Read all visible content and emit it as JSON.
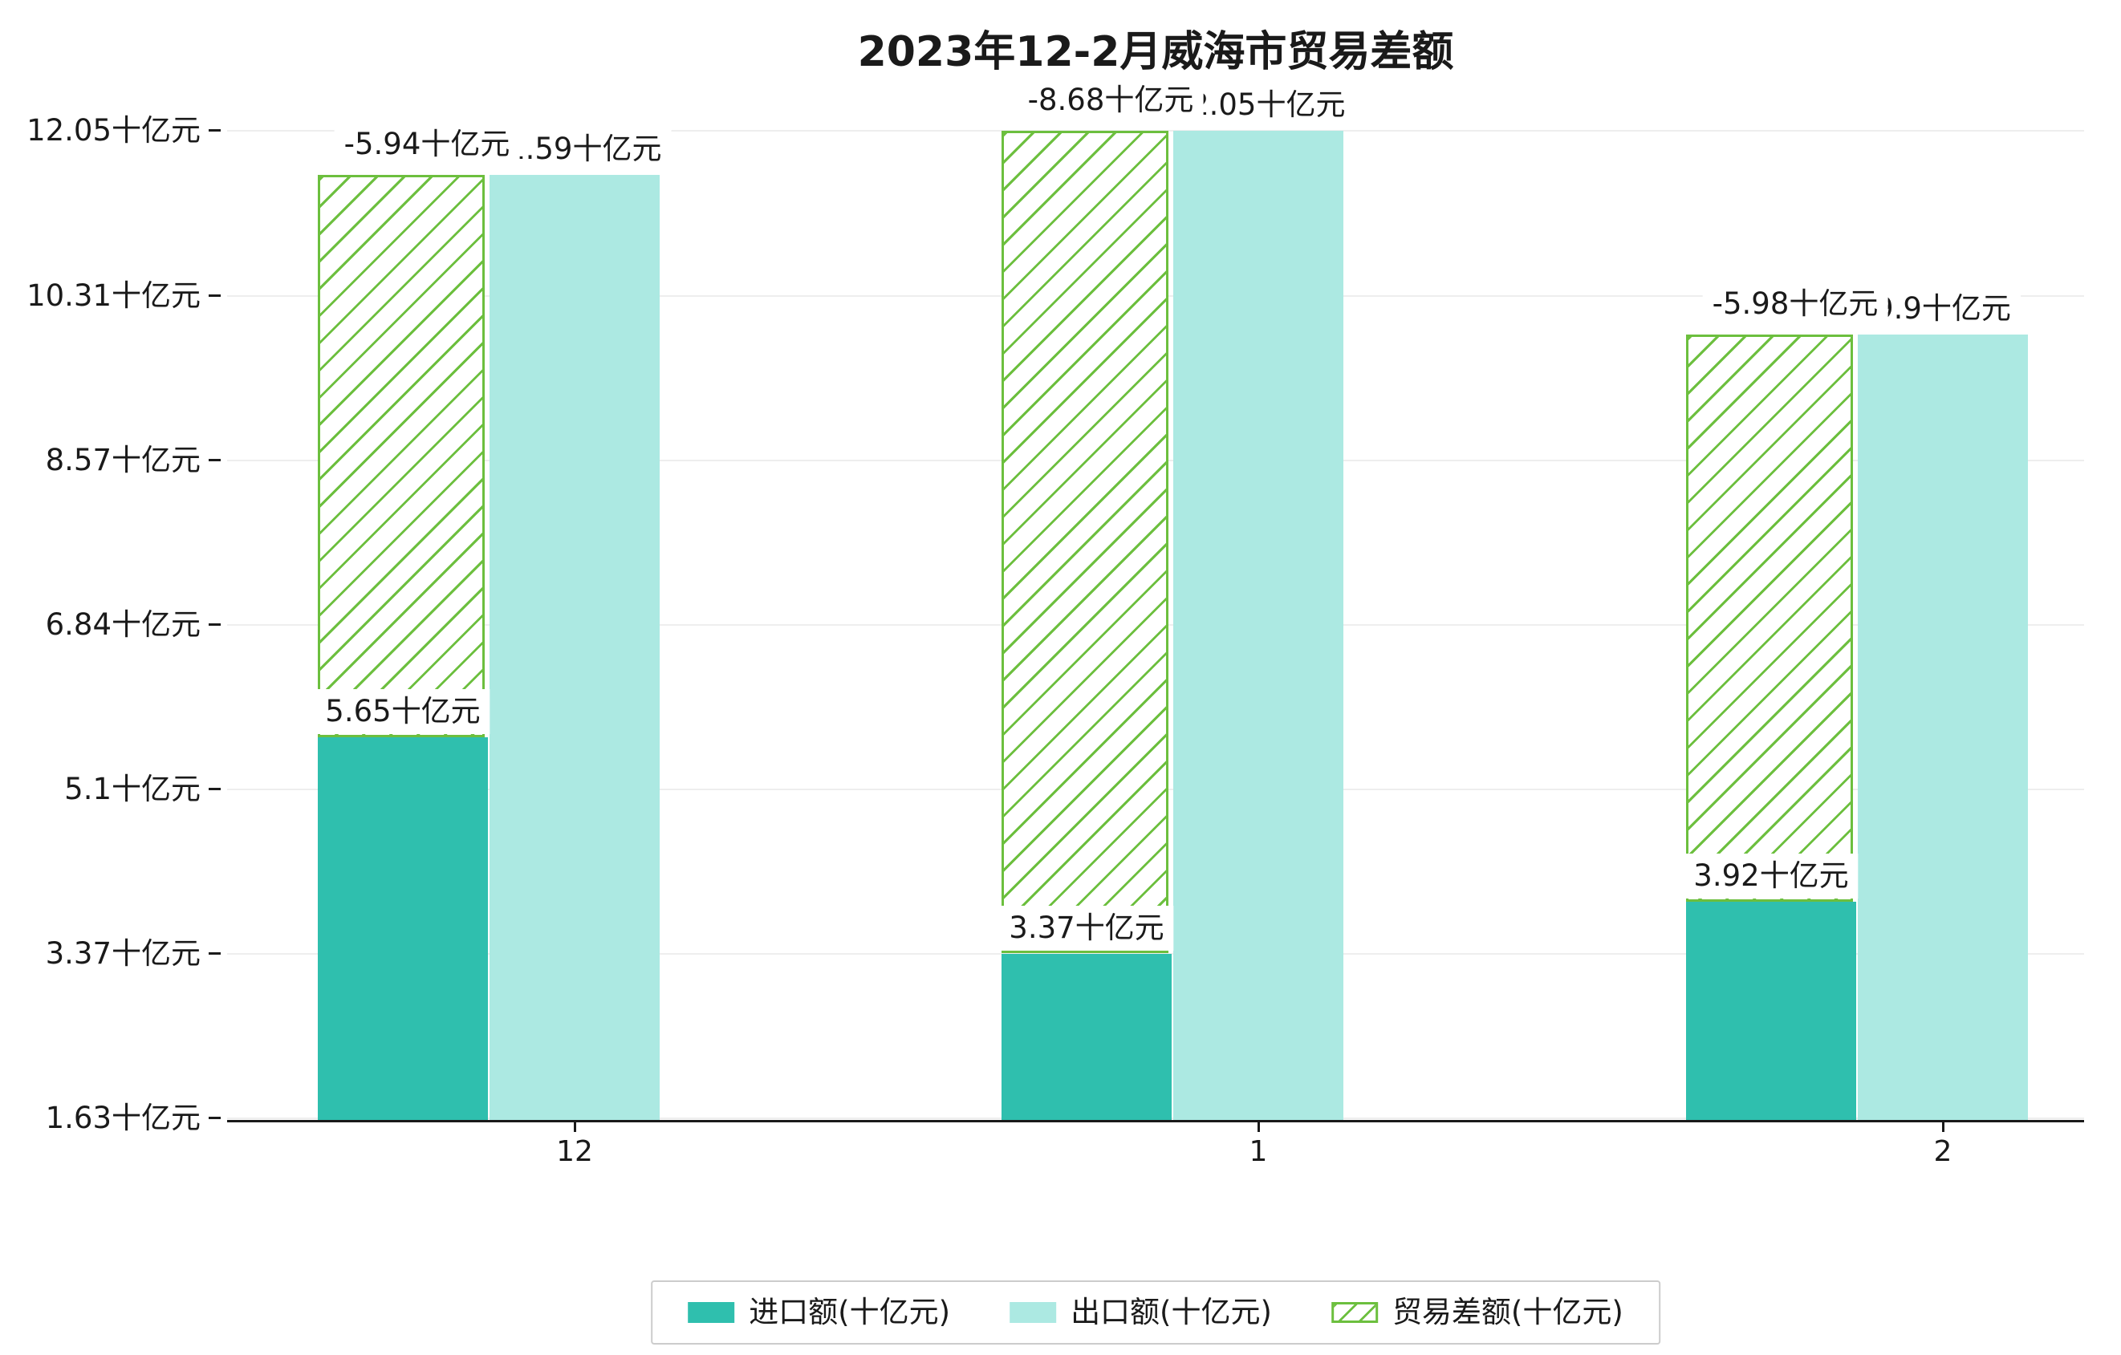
{
  "chart_data": {
    "type": "bar",
    "title": "2023年12-2月威海市贸易差额",
    "categories": [
      "12",
      "1",
      "2"
    ],
    "unit": "十亿元",
    "series": [
      {
        "name": "进口额(十亿元)",
        "role": "import",
        "color": "#2fbfae",
        "values": [
          5.65,
          3.37,
          3.92
        ],
        "data_labels": [
          "5.65十亿元",
          "3.37十亿元",
          "3.92十亿元"
        ]
      },
      {
        "name": "出口额(十亿元)",
        "role": "export",
        "color": "#ace9e2",
        "values": [
          11.59,
          12.05,
          9.9
        ],
        "data_labels": [
          "11.59十亿元",
          "12.05十亿元",
          "9.9十亿元"
        ]
      },
      {
        "name": "贸易差额(十亿元)",
        "role": "balance",
        "color": "#6cbf3e",
        "hatch": "/",
        "values": [
          -5.94,
          -8.68,
          -5.98
        ],
        "data_labels": [
          "-5.94十亿元",
          "-8.68十亿元",
          "-5.98十亿元"
        ],
        "spans": [
          [
            5.65,
            11.59
          ],
          [
            3.37,
            12.05
          ],
          [
            3.92,
            9.9
          ]
        ]
      }
    ],
    "yticks": [
      {
        "value": 1.63,
        "label": "1.63十亿元"
      },
      {
        "value": 3.37,
        "label": "3.37十亿元"
      },
      {
        "value": 5.1,
        "label": "5.1十亿元"
      },
      {
        "value": 6.84,
        "label": "6.84十亿元"
      },
      {
        "value": 8.57,
        "label": "8.57十亿元"
      },
      {
        "value": 10.31,
        "label": "10.31十亿元"
      },
      {
        "value": 12.05,
        "label": "12.05十亿元"
      }
    ],
    "ylim": [
      1.63,
      12.58
    ],
    "grid": true,
    "legend_position": "bottom"
  }
}
